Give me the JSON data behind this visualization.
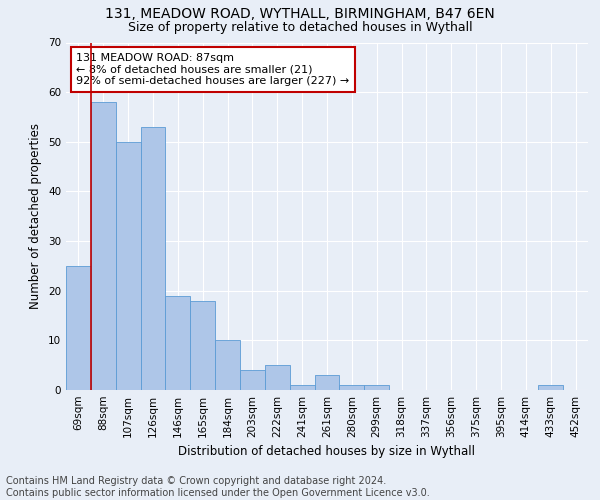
{
  "title1": "131, MEADOW ROAD, WYTHALL, BIRMINGHAM, B47 6EN",
  "title2": "Size of property relative to detached houses in Wythall",
  "xlabel": "Distribution of detached houses by size in Wythall",
  "ylabel": "Number of detached properties",
  "categories": [
    "69sqm",
    "88sqm",
    "107sqm",
    "126sqm",
    "146sqm",
    "165sqm",
    "184sqm",
    "203sqm",
    "222sqm",
    "241sqm",
    "261sqm",
    "280sqm",
    "299sqm",
    "318sqm",
    "337sqm",
    "356sqm",
    "375sqm",
    "395sqm",
    "414sqm",
    "433sqm",
    "452sqm"
  ],
  "values": [
    25,
    58,
    50,
    53,
    19,
    18,
    10,
    4,
    5,
    1,
    3,
    1,
    1,
    0,
    0,
    0,
    0,
    0,
    0,
    1,
    0
  ],
  "bar_color": "#aec6e8",
  "bar_edge_color": "#5b9bd5",
  "highlight_color": "#c00000",
  "annotation_line1": "131 MEADOW ROAD: 87sqm",
  "annotation_line2": "← 8% of detached houses are smaller (21)",
  "annotation_line3": "92% of semi-detached houses are larger (227) →",
  "annotation_box_color": "#ffffff",
  "annotation_box_edge_color": "#c00000",
  "vline_x_index": 1,
  "ylim": [
    0,
    70
  ],
  "yticks": [
    0,
    10,
    20,
    30,
    40,
    50,
    60,
    70
  ],
  "footer1": "Contains HM Land Registry data © Crown copyright and database right 2024.",
  "footer2": "Contains public sector information licensed under the Open Government Licence v3.0.",
  "background_color": "#e8eef7",
  "grid_color": "#ffffff",
  "title1_fontsize": 10,
  "title2_fontsize": 9,
  "axis_label_fontsize": 8.5,
  "tick_fontsize": 7.5,
  "annotation_fontsize": 8,
  "footer_fontsize": 7
}
